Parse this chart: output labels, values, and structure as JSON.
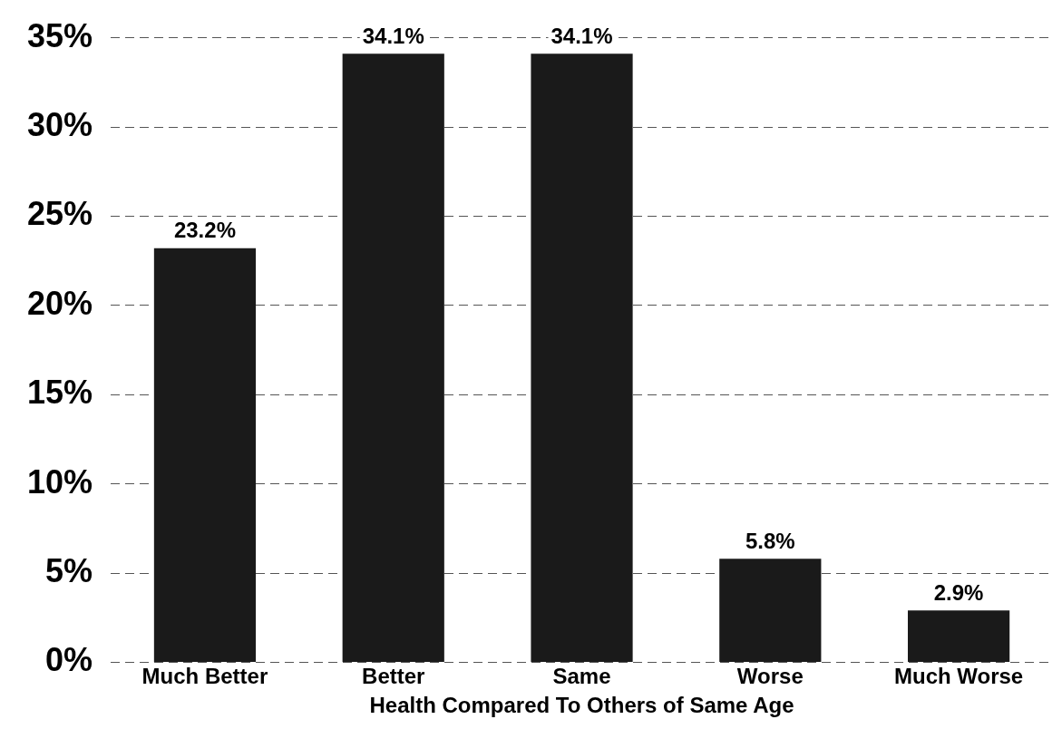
{
  "chart_data": {
    "type": "bar",
    "xlabel": "Health Compared To Others of Same Age",
    "categories": [
      "Much Better",
      "Better",
      "Same",
      "Worse",
      "Much Worse"
    ],
    "values": [
      23.2,
      34.1,
      34.1,
      5.8,
      2.9
    ],
    "value_labels": [
      "23.2%",
      "34.1%",
      "34.1%",
      "5.8%",
      "2.9%"
    ],
    "color": "#1a1a1a",
    "ylim": [
      0,
      35
    ],
    "yticks": [
      {
        "value": 0,
        "label": "0%"
      },
      {
        "value": 5,
        "label": "5%"
      },
      {
        "value": 10,
        "label": "10%"
      },
      {
        "value": 15,
        "label": "15%"
      },
      {
        "value": 20,
        "label": "20%"
      },
      {
        "value": 25,
        "label": "25%"
      },
      {
        "value": 30,
        "label": "30%"
      },
      {
        "value": 35,
        "label": "35%"
      }
    ],
    "grid": "y",
    "legend": false
  }
}
